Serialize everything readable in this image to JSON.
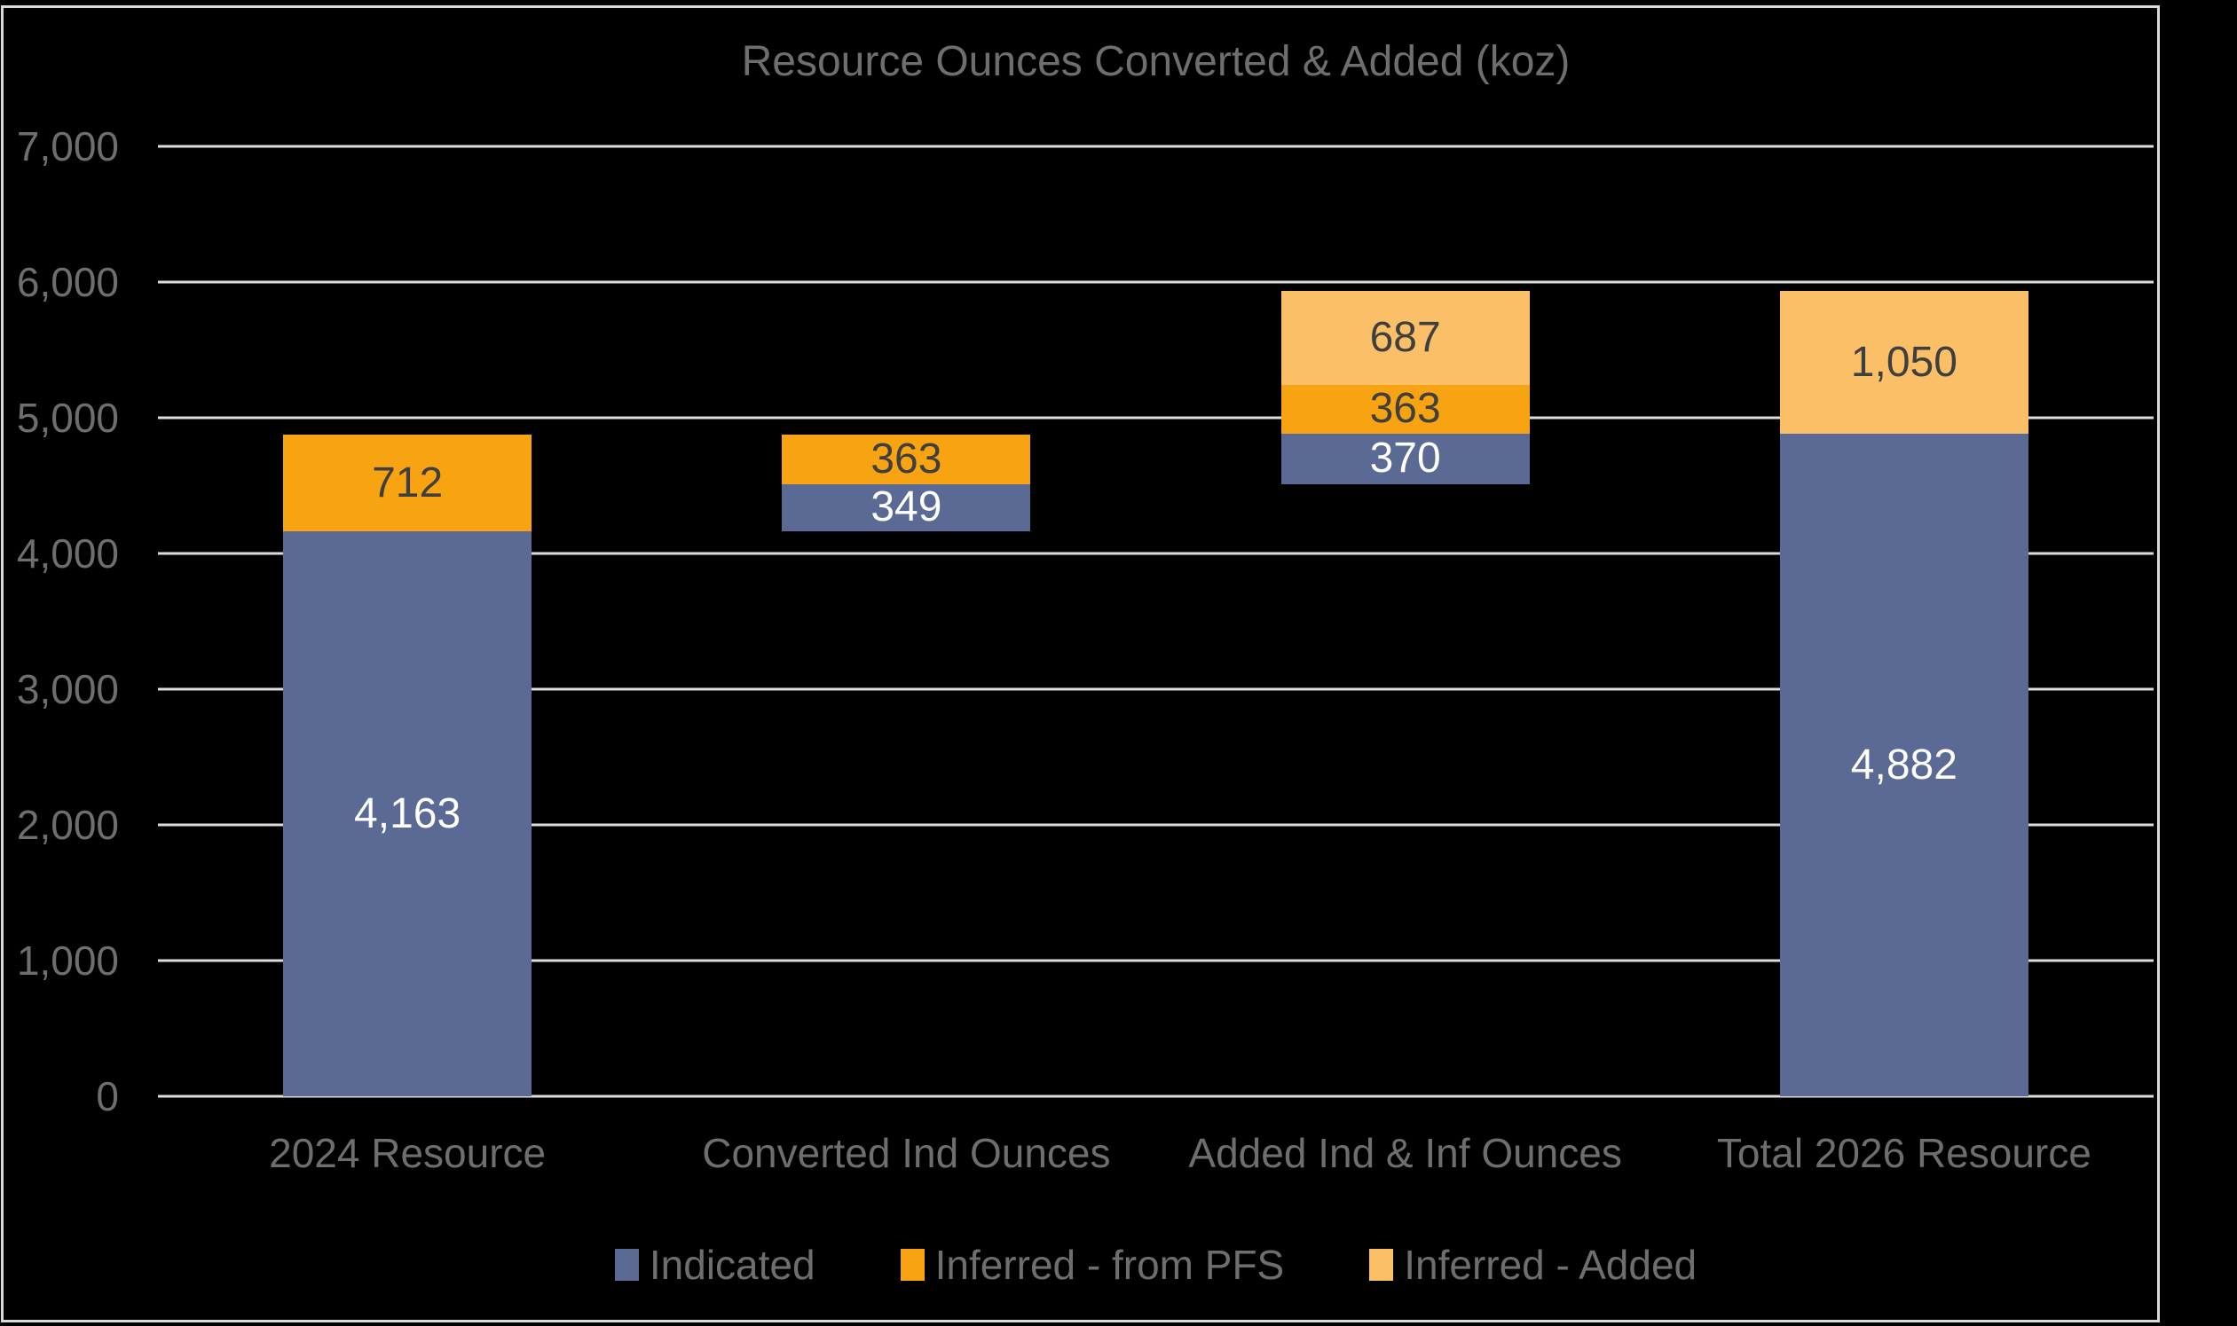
{
  "chart_data": {
    "type": "bar",
    "subtype": "stacked-floating-waterfall",
    "title": "Resource Ounces Converted & Added (koz)",
    "xlabel": "",
    "ylabel": "",
    "ylim": [
      0,
      7000
    ],
    "ytick_interval": 1000,
    "grid": "horizontal",
    "legend_position": "bottom",
    "yticks": [
      {
        "value": 7000,
        "label": "7,000"
      },
      {
        "value": 6000,
        "label": "6,000"
      },
      {
        "value": 5000,
        "label": "5,000"
      },
      {
        "value": 4000,
        "label": "4,000"
      },
      {
        "value": 3000,
        "label": "3,000"
      },
      {
        "value": 2000,
        "label": "2,000"
      },
      {
        "value": 1000,
        "label": "1,000"
      },
      {
        "value": 0,
        "label": "0"
      }
    ],
    "categories": [
      "2024 Resource",
      "Converted Ind Ounces",
      "Added Ind & Inf Ounces",
      "Total 2026 Resource"
    ],
    "series": [
      {
        "name": "Indicated",
        "color": "#5A6A94",
        "label_color": "#FFFFFF"
      },
      {
        "name": "Inferred - from PFS",
        "color": "#F8A311",
        "label_color": "#3F3F3F"
      },
      {
        "name": "Inferred - Added",
        "color": "#FBBF67",
        "label_color": "#3F3F3F"
      }
    ],
    "bars": [
      {
        "category": "2024 Resource",
        "base": 0,
        "segments": [
          {
            "series": "Indicated",
            "value": 4163,
            "label": "4,163"
          },
          {
            "series": "Inferred - from PFS",
            "value": 712,
            "label": "712"
          }
        ]
      },
      {
        "category": "Converted Ind Ounces",
        "base": 4163,
        "segments": [
          {
            "series": "Indicated",
            "value": 349,
            "label": "349"
          },
          {
            "series": "Inferred - from PFS",
            "value": 363,
            "label": "363"
          }
        ]
      },
      {
        "category": "Added Ind & Inf Ounces",
        "base": 4512,
        "segments": [
          {
            "series": "Indicated",
            "value": 370,
            "label": "370"
          },
          {
            "series": "Inferred - from PFS",
            "value": 363,
            "label": "363"
          },
          {
            "series": "Inferred - Added",
            "value": 687,
            "label": "687"
          }
        ]
      },
      {
        "category": "Total 2026 Resource",
        "base": 0,
        "segments": [
          {
            "series": "Indicated",
            "value": 4882,
            "label": "4,882"
          },
          {
            "series": "Inferred - Added",
            "value": 1050,
            "label": "1,050"
          }
        ]
      }
    ],
    "bar_width_pct": 12.45,
    "colors": {
      "background": "#000000",
      "gridline": "#DCDCDC",
      "frame_border": "#D9D9D9",
      "axis_text": "#6E6E6E",
      "title_text": "#6E6E6E"
    }
  }
}
